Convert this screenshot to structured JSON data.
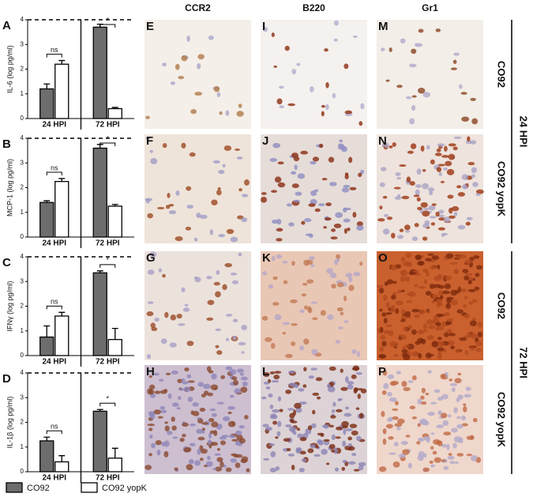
{
  "figure": {
    "column_headers": [
      "CCR2",
      "B220",
      "Gr1"
    ],
    "image_panels": [
      "E",
      "F",
      "G",
      "H",
      "I",
      "J",
      "K",
      "L",
      "M",
      "N",
      "O",
      "P"
    ],
    "row_labels": [
      "CO92",
      "CO92 yopK",
      "CO92",
      "CO92 yopK"
    ],
    "time_labels": [
      "24 HPI",
      "72 HPI"
    ]
  },
  "chart_data": [
    {
      "type": "bar",
      "panel": "A",
      "y_label": "IL-6 (log pg/ml)",
      "categories": [
        "24 HPI",
        "72 HPI"
      ],
      "series": [
        {
          "name": "CO92",
          "color": "#6d6d6d",
          "values": [
            1.2,
            3.7
          ],
          "errors": [
            0.2,
            0.12
          ]
        },
        {
          "name": "CO92 yopK",
          "color": "#ffffff",
          "values": [
            2.2,
            0.4
          ],
          "errors": [
            0.15,
            0.05
          ]
        }
      ],
      "annotations": [
        "ns",
        "*"
      ],
      "ylim": [
        0,
        4
      ],
      "yticks": [
        0,
        1,
        2,
        3,
        4
      ]
    },
    {
      "type": "bar",
      "panel": "B",
      "y_label": "MCP-1 (log pg/ml)",
      "categories": [
        "24 HPI",
        "72 HPI"
      ],
      "series": [
        {
          "name": "CO92",
          "color": "#6d6d6d",
          "values": [
            1.4,
            3.6
          ],
          "errors": [
            0.07,
            0.15
          ]
        },
        {
          "name": "CO92 yopK",
          "color": "#ffffff",
          "values": [
            2.25,
            1.25
          ],
          "errors": [
            0.12,
            0.07
          ]
        }
      ],
      "annotations": [
        "ns",
        "*"
      ],
      "ylim": [
        0,
        4
      ],
      "yticks": [
        0,
        1,
        2,
        3,
        4
      ]
    },
    {
      "type": "bar",
      "panel": "C",
      "y_label": "IFNγ (log pg/ml)",
      "categories": [
        "24 HPI",
        "72 HPI"
      ],
      "series": [
        {
          "name": "CO92",
          "color": "#6d6d6d",
          "values": [
            0.75,
            3.35
          ],
          "errors": [
            0.45,
            0.08
          ]
        },
        {
          "name": "CO92 yopK",
          "color": "#ffffff",
          "values": [
            1.6,
            0.65
          ],
          "errors": [
            0.15,
            0.45
          ]
        }
      ],
      "annotations": [
        "ns",
        "*"
      ],
      "ylim": [
        0,
        4
      ],
      "yticks": [
        0,
        1,
        2,
        3,
        4
      ]
    },
    {
      "type": "bar",
      "panel": "D",
      "y_label": "IL-1β (log pg/ml)",
      "categories": [
        "24 HPI",
        "72 HPI"
      ],
      "series": [
        {
          "name": "CO92",
          "color": "#6d6d6d",
          "values": [
            1.25,
            2.45
          ],
          "errors": [
            0.15,
            0.07
          ]
        },
        {
          "name": "CO92 yopK",
          "color": "#ffffff",
          "values": [
            0.4,
            0.55
          ],
          "errors": [
            0.25,
            0.4
          ]
        }
      ],
      "annotations": [
        "ns",
        "*"
      ],
      "ylim": [
        0,
        4
      ],
      "yticks": [
        0,
        1,
        2,
        3,
        4
      ]
    }
  ]
}
